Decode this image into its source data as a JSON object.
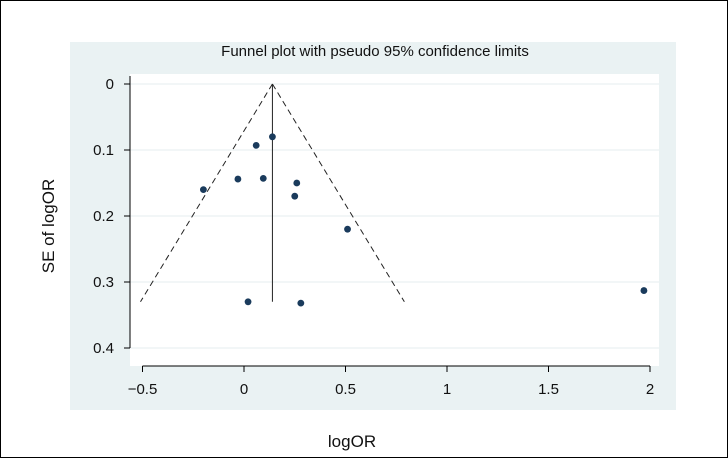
{
  "chart_data": {
    "type": "scatter",
    "title": "Funnel plot with pseudo 95% confidence limits",
    "xlabel": "logOR",
    "ylabel": "SE of logOR",
    "xlim": [
      -0.55,
      2.05
    ],
    "ylim": [
      0,
      0.4
    ],
    "y_inverted": true,
    "grid": true,
    "x_ticks": [
      {
        "value": -0.5,
        "label": "−0.5"
      },
      {
        "value": 0,
        "label": "0"
      },
      {
        "value": 0.5,
        "label": "0.5"
      },
      {
        "value": 1,
        "label": "1"
      },
      {
        "value": 1.5,
        "label": "1.5"
      },
      {
        "value": 2,
        "label": "2"
      }
    ],
    "y_ticks": [
      {
        "value": 0,
        "label": "0"
      },
      {
        "value": 0.1,
        "label": "0.1"
      },
      {
        "value": 0.2,
        "label": "0.2"
      },
      {
        "value": 0.3,
        "label": "0.3"
      },
      {
        "value": 0.4,
        "label": "0.4"
      }
    ],
    "points": [
      {
        "x": -0.2,
        "y": 0.16
      },
      {
        "x": -0.03,
        "y": 0.144
      },
      {
        "x": 0.06,
        "y": 0.093
      },
      {
        "x": 0.095,
        "y": 0.143
      },
      {
        "x": 0.14,
        "y": 0.08
      },
      {
        "x": 0.25,
        "y": 0.17
      },
      {
        "x": 0.26,
        "y": 0.15
      },
      {
        "x": 0.51,
        "y": 0.22
      },
      {
        "x": 0.02,
        "y": 0.33
      },
      {
        "x": 0.28,
        "y": 0.332
      },
      {
        "x": 1.97,
        "y": 0.313
      }
    ],
    "pooled_estimate": 0.14,
    "pooled_line_max_se": 0.33,
    "ci_limits": {
      "apex": {
        "x": 0.14,
        "y": 0
      },
      "lower_left": {
        "x": -0.51,
        "y": 0.33
      },
      "lower_right": {
        "x": 0.79,
        "y": 0.33
      }
    },
    "colors": {
      "panel": "#eaf2f3",
      "plot_bg": "#ffffff",
      "grid": "#e6eeef",
      "marker": "#1a3b5c",
      "line": "#222222"
    }
  }
}
